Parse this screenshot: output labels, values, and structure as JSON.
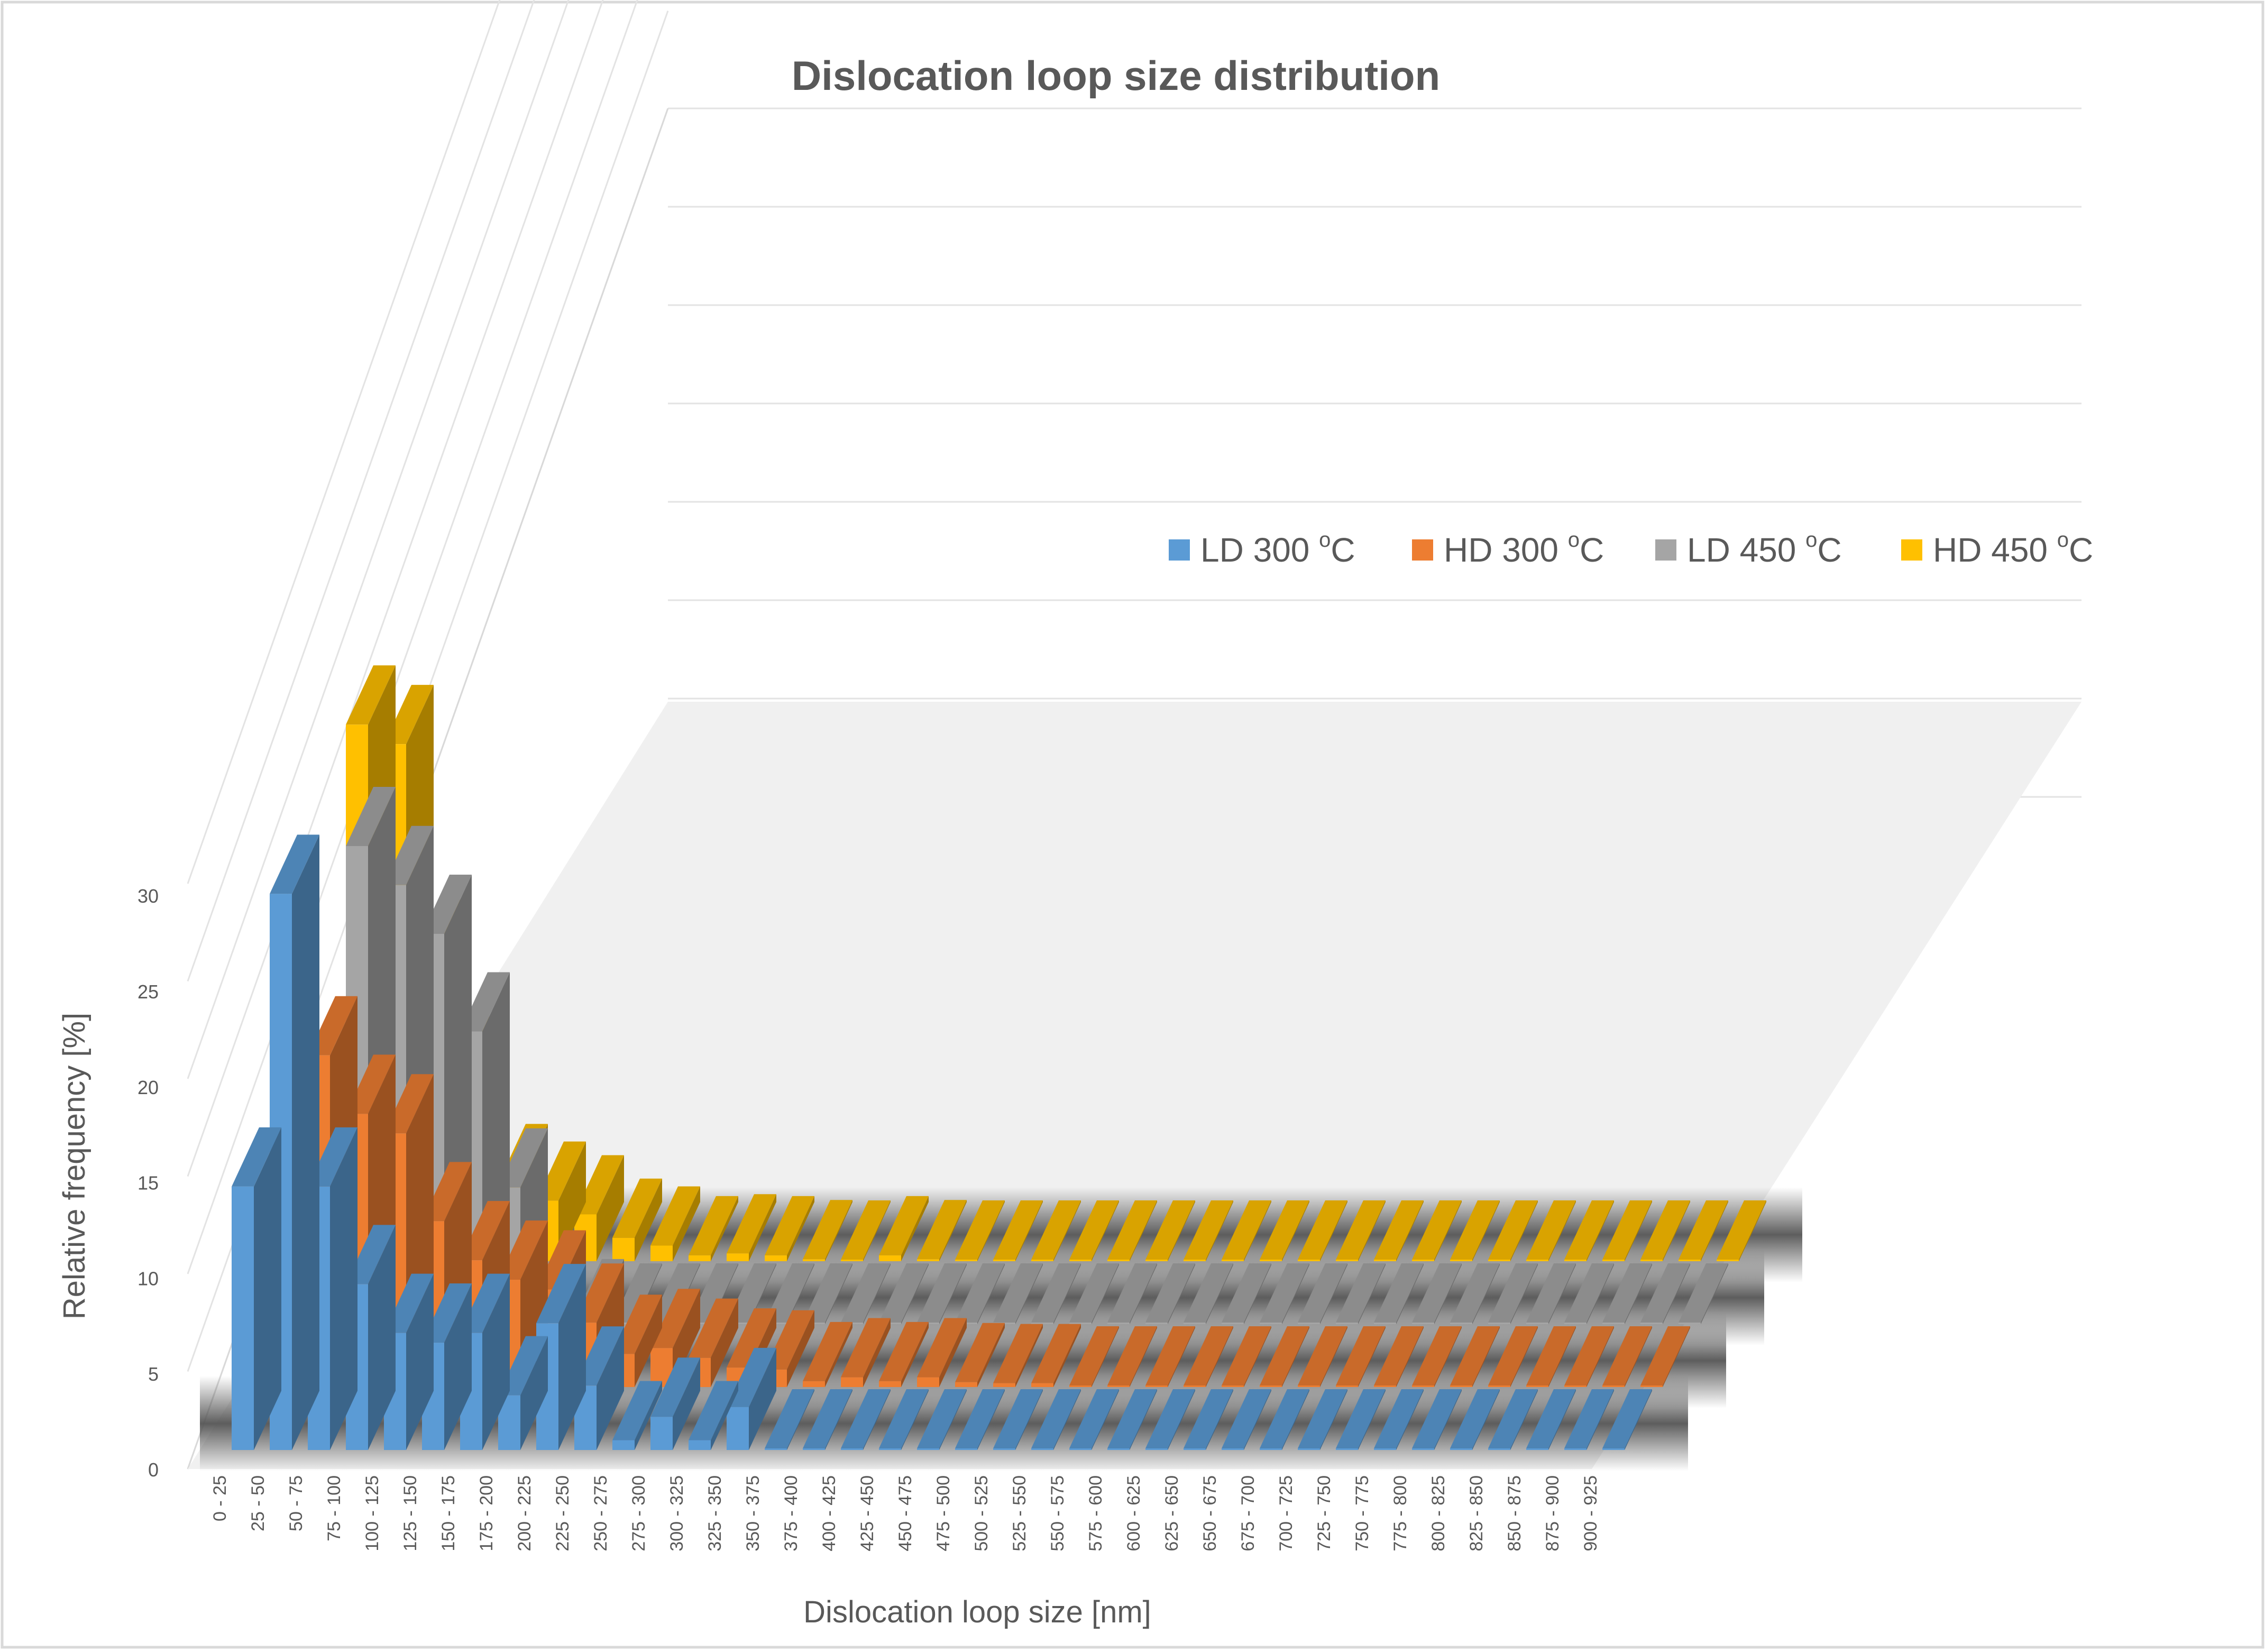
{
  "chart_data": {
    "type": "bar",
    "style": "3d-column",
    "title": "Dislocation loop size distribution",
    "xlabel": "Dislocation loop size [nm]",
    "ylabel": "Relative frequency [%]",
    "ylim": [
      0,
      30
    ],
    "yticks": [
      0,
      5,
      10,
      15,
      20,
      25,
      30
    ],
    "legend_position": "right",
    "categories": [
      "0 - 25",
      "25 - 50",
      "50 - 75",
      "75 - 100",
      "100 - 125",
      "125 - 150",
      "150 - 175",
      "175 - 200",
      "200 - 225",
      "225 - 250",
      "250 - 275",
      "275 - 300",
      "300 - 325",
      "325 - 350",
      "350 - 375",
      "375 - 400",
      "400 - 425",
      "425 - 450",
      "450 - 475",
      "475 - 500",
      "500 - 525",
      "525 - 550",
      "550 - 575",
      "575 - 600",
      "600 - 625",
      "625 - 650",
      "650 - 675",
      "675 - 700",
      "700 - 725",
      "725 - 750",
      "750 - 775",
      "775 - 800",
      "800 - 825",
      "825 - 850",
      "850 - 875",
      "875 - 900",
      "900 - 925"
    ],
    "series": [
      {
        "name": "LD 300",
        "unit_label": "C",
        "color": "#5b9bd5",
        "values": [
          13.5,
          28.5,
          13.5,
          8.5,
          6,
          5.5,
          6,
          2.8,
          6.5,
          3.3,
          0.5,
          1.7,
          0.5,
          2.2,
          0,
          0,
          0,
          0,
          0,
          0,
          0,
          0,
          0,
          0,
          0,
          0,
          0,
          0,
          0,
          0,
          0,
          0,
          0,
          0,
          0,
          0,
          0
        ]
      },
      {
        "name": "HD 300",
        "unit_label": "C",
        "color": "#ed7d31",
        "values": [
          17,
          17,
          14,
          13,
          8.5,
          6.5,
          5.5,
          5,
          3.3,
          1.7,
          2,
          1.5,
          1,
          0.9,
          0.3,
          0.5,
          0.3,
          0.5,
          0.25,
          0.2,
          0.2,
          0,
          0,
          0,
          0,
          0,
          0,
          0,
          0,
          0,
          0,
          0,
          0,
          0,
          0,
          0,
          0
        ]
      },
      {
        "name": "LD 450",
        "unit_label": "C",
        "color": "#a5a5a5",
        "values": [
          11,
          24.5,
          22.5,
          20,
          15,
          7,
          0.8,
          0.3,
          0,
          0,
          0,
          0,
          0,
          0,
          0,
          0,
          0,
          0,
          0,
          0,
          0,
          0,
          0,
          0,
          0,
          0,
          0,
          0,
          0,
          0,
          0,
          0,
          0,
          0,
          0,
          0,
          0
        ]
      },
      {
        "name": "HD 450",
        "unit_label": "C",
        "color": "#ffc000",
        "values": [
          27.5,
          26.5,
          15.5,
          9.5,
          4,
          3.1,
          2.4,
          1.2,
          0.8,
          0.3,
          0.4,
          0.3,
          0.1,
          0,
          0.3,
          0.1,
          0,
          0,
          0,
          0,
          0,
          0,
          0,
          0,
          0,
          0,
          0,
          0,
          0,
          0,
          0,
          0,
          0,
          0,
          0,
          0,
          0
        ]
      }
    ]
  }
}
